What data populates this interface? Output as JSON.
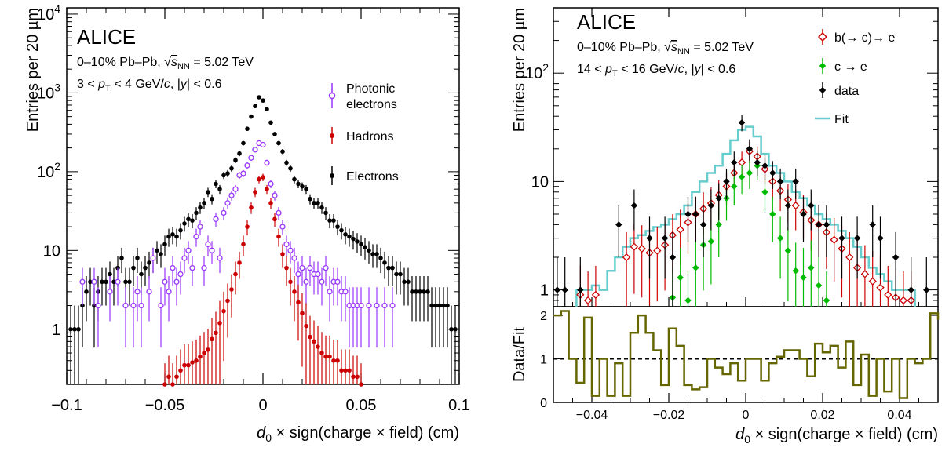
{
  "chart_data": [
    {
      "type": "scatter",
      "panel": "left",
      "experiment": "ALICE",
      "system_prefix": "0–10% Pb–Pb, ",
      "system_energy": " = 5.02 TeV",
      "energy_symbol": "s",
      "energy_subscript": "NN",
      "kinematics": {
        "pt_low": "3 < ",
        "p": "p",
        "T": "T",
        "pt_high": " < 4 GeV/",
        "c": "c",
        "sep": ", |",
        "y": "y",
        "ycut": "| < 0.6"
      },
      "ylabel": "Entries per 20 µm",
      "xlabel": {
        "d": "d",
        "sub": "0",
        "rest": " × sign(charge × field) (cm)"
      },
      "xlim": [
        -0.1,
        0.1
      ],
      "ylim": [
        0.2,
        12000
      ],
      "yscale": "log",
      "xticks": [
        -0.1,
        -0.05,
        0,
        0.05,
        0.1
      ],
      "xtick_labels": [
        "−0.1",
        "−0.05",
        "0",
        "0.05",
        "0.1"
      ],
      "yticks": [
        1,
        10,
        100,
        1000,
        10000
      ],
      "ytick_labels": [
        {
          "base": "1",
          "exp": ""
        },
        {
          "base": "10",
          "exp": ""
        },
        {
          "base": "10",
          "exp": "2"
        },
        {
          "base": "10",
          "exp": "3"
        },
        {
          "base": "10",
          "exp": "4"
        }
      ],
      "legend": [
        {
          "label": "Photonic",
          "label2": "electrons",
          "color": "#9933ff",
          "marker": "open-circle"
        },
        {
          "label": "Hadrons",
          "label2": "",
          "color": "#cc0000",
          "marker": "filled-circle"
        },
        {
          "label": "Electrons",
          "label2": "",
          "color": "#000000",
          "marker": "filled-circle"
        }
      ],
      "series": [
        {
          "name": "Electrons",
          "color": "#000000",
          "x": [
            -0.098,
            -0.096,
            -0.094,
            -0.092,
            -0.09,
            -0.088,
            -0.086,
            -0.084,
            -0.082,
            -0.08,
            -0.078,
            -0.076,
            -0.074,
            -0.072,
            -0.07,
            -0.068,
            -0.066,
            -0.064,
            -0.062,
            -0.06,
            -0.058,
            -0.056,
            -0.054,
            -0.052,
            -0.05,
            -0.048,
            -0.046,
            -0.044,
            -0.042,
            -0.04,
            -0.038,
            -0.036,
            -0.034,
            -0.032,
            -0.03,
            -0.028,
            -0.026,
            -0.024,
            -0.022,
            -0.02,
            -0.018,
            -0.016,
            -0.014,
            -0.012,
            -0.01,
            -0.008,
            -0.006,
            -0.004,
            -0.002,
            0,
            0.002,
            0.004,
            0.006,
            0.008,
            0.01,
            0.012,
            0.014,
            0.016,
            0.018,
            0.02,
            0.022,
            0.024,
            0.026,
            0.028,
            0.03,
            0.032,
            0.034,
            0.036,
            0.038,
            0.04,
            0.042,
            0.044,
            0.046,
            0.048,
            0.05,
            0.052,
            0.054,
            0.056,
            0.058,
            0.06,
            0.062,
            0.064,
            0.066,
            0.068,
            0.07,
            0.072,
            0.074,
            0.076,
            0.078,
            0.08,
            0.082,
            0.084,
            0.086,
            0.088,
            0.09,
            0.092,
            0.094,
            0.096,
            0.098
          ],
          "values": [
            1,
            1,
            1,
            2,
            3,
            4,
            2,
            3,
            4,
            4,
            5,
            4,
            6,
            8,
            4,
            4,
            6,
            8,
            5,
            6,
            7,
            8,
            10,
            9,
            12,
            15,
            16,
            15,
            18,
            22,
            25,
            24,
            30,
            35,
            40,
            55,
            45,
            70,
            60,
            90,
            95,
            110,
            140,
            170,
            230,
            350,
            500,
            680,
            880,
            800,
            620,
            420,
            300,
            230,
            180,
            130,
            110,
            80,
            70,
            65,
            60,
            45,
            40,
            40,
            35,
            30,
            24,
            24,
            20,
            18,
            16,
            15,
            14,
            13,
            12,
            11,
            10,
            9,
            9,
            8,
            7,
            6,
            6,
            5,
            5,
            4,
            4,
            3,
            3,
            3,
            3,
            3,
            2,
            2,
            2,
            2,
            2,
            1,
            1
          ]
        },
        {
          "name": "Photonic electrons",
          "color": "#9933ff",
          "x": [
            -0.092,
            -0.086,
            -0.084,
            -0.078,
            -0.074,
            -0.07,
            -0.066,
            -0.064,
            -0.062,
            -0.058,
            -0.056,
            -0.052,
            -0.05,
            -0.048,
            -0.046,
            -0.044,
            -0.042,
            -0.04,
            -0.038,
            -0.036,
            -0.034,
            -0.032,
            -0.03,
            -0.028,
            -0.026,
            -0.024,
            -0.022,
            -0.02,
            -0.018,
            -0.016,
            -0.014,
            -0.012,
            -0.01,
            -0.008,
            -0.006,
            -0.004,
            -0.002,
            0,
            0.002,
            0.004,
            0.006,
            0.008,
            0.01,
            0.012,
            0.014,
            0.016,
            0.018,
            0.02,
            0.022,
            0.024,
            0.026,
            0.028,
            0.03,
            0.032,
            0.034,
            0.036,
            0.038,
            0.04,
            0.042,
            0.044,
            0.046,
            0.048,
            0.05,
            0.054,
            0.058,
            0.062,
            0.066
          ],
          "values": [
            4,
            4,
            2,
            3,
            4,
            2,
            2,
            3,
            2,
            3,
            8,
            2,
            4,
            3,
            6,
            4,
            5,
            8,
            10,
            6,
            15,
            20,
            6,
            12,
            10,
            25,
            8,
            30,
            40,
            50,
            60,
            90,
            95,
            120,
            150,
            190,
            230,
            220,
            130,
            70,
            50,
            30,
            20,
            12,
            10,
            8,
            5,
            6,
            4,
            6,
            5,
            5,
            4,
            6,
            3,
            4,
            4,
            3,
            3,
            2,
            2,
            2,
            2,
            2,
            2,
            2,
            2
          ]
        },
        {
          "name": "Hadrons",
          "color": "#cc0000",
          "x": [
            -0.05,
            -0.048,
            -0.046,
            -0.044,
            -0.042,
            -0.04,
            -0.038,
            -0.036,
            -0.034,
            -0.032,
            -0.03,
            -0.028,
            -0.026,
            -0.024,
            -0.022,
            -0.02,
            -0.018,
            -0.016,
            -0.014,
            -0.012,
            -0.01,
            -0.008,
            -0.006,
            -0.004,
            -0.002,
            0,
            0.002,
            0.004,
            0.006,
            0.008,
            0.01,
            0.012,
            0.014,
            0.016,
            0.018,
            0.02,
            0.022,
            0.024,
            0.026,
            0.028,
            0.03,
            0.032,
            0.034,
            0.036,
            0.038,
            0.04,
            0.042,
            0.044,
            0.046,
            0.048,
            0.05
          ],
          "values": [
            0.2,
            0.25,
            0.2,
            0.25,
            0.3,
            0.35,
            0.35,
            0.38,
            0.4,
            0.45,
            0.5,
            0.55,
            0.75,
            0.9,
            1.2,
            1.7,
            2.3,
            3.2,
            5,
            7,
            12,
            20,
            35,
            55,
            80,
            85,
            60,
            40,
            25,
            15,
            9,
            6,
            4,
            3,
            2.2,
            1.6,
            1.1,
            0.8,
            0.7,
            0.6,
            0.5,
            0.45,
            0.45,
            0.4,
            0.4,
            0.3,
            0.3,
            0.3,
            0.25,
            0.25,
            0.2
          ]
        }
      ]
    },
    {
      "type": "scatter",
      "panel": "right",
      "experiment": "ALICE",
      "system_prefix": "0–10% Pb–Pb, ",
      "system_energy": " = 5.02 TeV",
      "energy_symbol": "s",
      "energy_subscript": "NN",
      "kinematics": {
        "pt_low": "14 < ",
        "p": "p",
        "T": "T",
        "pt_high": " < 16 GeV/",
        "c": "c",
        "sep": ", |",
        "y": "y",
        "ycut": "| < 0.6"
      },
      "ylabel": "Entries per 20 µm",
      "ratio_ylabel": "Data/Fit",
      "xlabel": {
        "d": "d",
        "sub": "0",
        "rest": " × sign(charge × field) (cm)"
      },
      "xlim": [
        -0.05,
        0.05
      ],
      "ylim": [
        0.7,
        400
      ],
      "yscale": "log",
      "ratio_ylim": [
        0,
        2.2
      ],
      "xticks": [
        -0.04,
        -0.02,
        0,
        0.02,
        0.04
      ],
      "xtick_labels": [
        "−0.04",
        "−0.02",
        "0",
        "0.02",
        "0.04"
      ],
      "yticks": [
        1,
        10,
        100
      ],
      "ytick_labels": [
        {
          "base": "1",
          "exp": ""
        },
        {
          "base": "10",
          "exp": ""
        },
        {
          "base": "10",
          "exp": "2"
        }
      ],
      "ratio_yticks": [
        0,
        1,
        2
      ],
      "ratio_ytick_labels": [
        "0",
        "1",
        "2"
      ],
      "legend": [
        {
          "label": "b(→ c)→ e",
          "color": "#cc0000",
          "marker": "open-diamond"
        },
        {
          "label": "c → e",
          "color": "#00bb00",
          "marker": "filled-diamond"
        },
        {
          "label": "data",
          "color": "#000000",
          "marker": "filled-diamond"
        },
        {
          "label": "Fit",
          "color": "#66cccc",
          "marker": "line"
        }
      ],
      "series": [
        {
          "name": "Fit",
          "color": "#66cccc",
          "bin_edges": [
            -0.044,
            -0.042,
            -0.04,
            -0.038,
            -0.036,
            -0.034,
            -0.032,
            -0.03,
            -0.028,
            -0.026,
            -0.024,
            -0.022,
            -0.02,
            -0.018,
            -0.016,
            -0.014,
            -0.012,
            -0.01,
            -0.008,
            -0.006,
            -0.004,
            -0.002,
            0,
            0.002,
            0.004,
            0.006,
            0.008,
            0.01,
            0.012,
            0.014,
            0.016,
            0.018,
            0.02,
            0.022,
            0.024,
            0.026,
            0.028,
            0.03,
            0.032,
            0.034,
            0.036,
            0.038,
            0.04,
            0.042,
            0.044
          ],
          "values": [
            1,
            1,
            1.1,
            1,
            1.5,
            2,
            2.5,
            3,
            3.2,
            3.5,
            3.8,
            4,
            4.5,
            5,
            6,
            8,
            10,
            12,
            14,
            18,
            24,
            30,
            32,
            26,
            18,
            14,
            12,
            10,
            8,
            7,
            6,
            5,
            4.5,
            4,
            3.5,
            3,
            2.5,
            2,
            1.6,
            1.4,
            1.2,
            1,
            1,
            1
          ]
        },
        {
          "name": "b(→ c)→ e",
          "color": "#cc0000",
          "x": [
            -0.043,
            -0.041,
            -0.039,
            -0.031,
            -0.029,
            -0.027,
            -0.025,
            -0.023,
            -0.021,
            -0.019,
            -0.017,
            -0.015,
            -0.013,
            -0.011,
            -0.009,
            -0.007,
            -0.005,
            -0.003,
            -0.001,
            0.001,
            0.003,
            0.005,
            0.007,
            0.009,
            0.011,
            0.013,
            0.015,
            0.017,
            0.019,
            0.021,
            0.023,
            0.025,
            0.027,
            0.029,
            0.031,
            0.033,
            0.035,
            0.037,
            0.039,
            0.041,
            0.043
          ],
          "values": [
            0.9,
            0.8,
            0.9,
            2,
            2.5,
            2.4,
            2.2,
            2.3,
            2.6,
            3.2,
            3.6,
            4.2,
            5,
            5.6,
            6.3,
            7.5,
            9,
            12,
            15,
            19,
            17,
            13,
            10,
            8.2,
            6.8,
            6,
            5.2,
            4.4,
            4,
            3.4,
            2.9,
            2.4,
            2,
            1.6,
            1.4,
            1.2,
            1.05,
            0.9,
            0.85,
            0.8,
            0.8
          ]
        },
        {
          "name": "c → e",
          "color": "#00bb00",
          "x": [
            -0.019,
            -0.017,
            -0.015,
            -0.013,
            -0.011,
            -0.009,
            -0.007,
            -0.005,
            -0.003,
            -0.001,
            0.001,
            0.003,
            0.005,
            0.007,
            0.009,
            0.011,
            0.013,
            0.015,
            0.017,
            0.019,
            0.021
          ],
          "values": [
            0.85,
            1.3,
            0.8,
            1.6,
            2.6,
            2.8,
            4,
            7,
            9,
            11,
            12,
            14,
            8,
            5,
            3,
            2.3,
            1.5,
            1.3,
            1.6,
            1.1,
            0.8
          ]
        },
        {
          "name": "data",
          "color": "#000000",
          "x": [
            -0.049,
            -0.047,
            -0.043,
            -0.033,
            -0.029,
            -0.025,
            -0.021,
            -0.019,
            -0.015,
            -0.013,
            -0.011,
            -0.009,
            -0.007,
            -0.005,
            -0.003,
            -0.001,
            0.001,
            0.003,
            0.005,
            0.007,
            0.009,
            0.011,
            0.013,
            0.015,
            0.017,
            0.019,
            0.021,
            0.025,
            0.029,
            0.033,
            0.035,
            0.039,
            0.043,
            0.047
          ],
          "values": [
            1,
            1,
            1,
            4,
            6,
            3,
            3,
            2,
            5,
            5,
            4,
            6,
            7,
            10,
            15,
            35,
            20,
            15,
            14,
            12,
            10,
            6,
            10,
            5,
            6,
            4,
            4,
            3,
            3,
            4,
            3,
            2,
            1,
            1
          ]
        }
      ],
      "ratio_series": {
        "name": "Data/Fit",
        "color": "#666600",
        "bin_edges": [
          -0.05,
          -0.048,
          -0.046,
          -0.044,
          -0.042,
          -0.04,
          -0.038,
          -0.036,
          -0.034,
          -0.032,
          -0.03,
          -0.028,
          -0.026,
          -0.024,
          -0.022,
          -0.02,
          -0.018,
          -0.016,
          -0.014,
          -0.012,
          -0.01,
          -0.008,
          -0.006,
          -0.004,
          -0.002,
          0,
          0.002,
          0.004,
          0.006,
          0.008,
          0.01,
          0.012,
          0.014,
          0.016,
          0.018,
          0.02,
          0.022,
          0.024,
          0.026,
          0.028,
          0.03,
          0.032,
          0.034,
          0.036,
          0.038,
          0.04,
          0.042,
          0.044,
          0.046,
          0.048,
          0.05
        ],
        "values": [
          2,
          2.1,
          1,
          0.45,
          1.95,
          0.15,
          1,
          0.15,
          0.9,
          0.15,
          1.6,
          2,
          1.6,
          1.2,
          0.4,
          1.7,
          1.3,
          0.4,
          0.3,
          0.35,
          1,
          0.8,
          0.65,
          0.9,
          0.5,
          1,
          1,
          0.5,
          0.9,
          1.05,
          1.2,
          1.2,
          1,
          0.6,
          1.35,
          1.15,
          1.3,
          0.8,
          1.4,
          0.4,
          1.1,
          0.15,
          1,
          0.25,
          1,
          0.1,
          1,
          0.9,
          1,
          2.05,
          1.9
        ]
      },
      "ratio_reference": 1
    }
  ]
}
